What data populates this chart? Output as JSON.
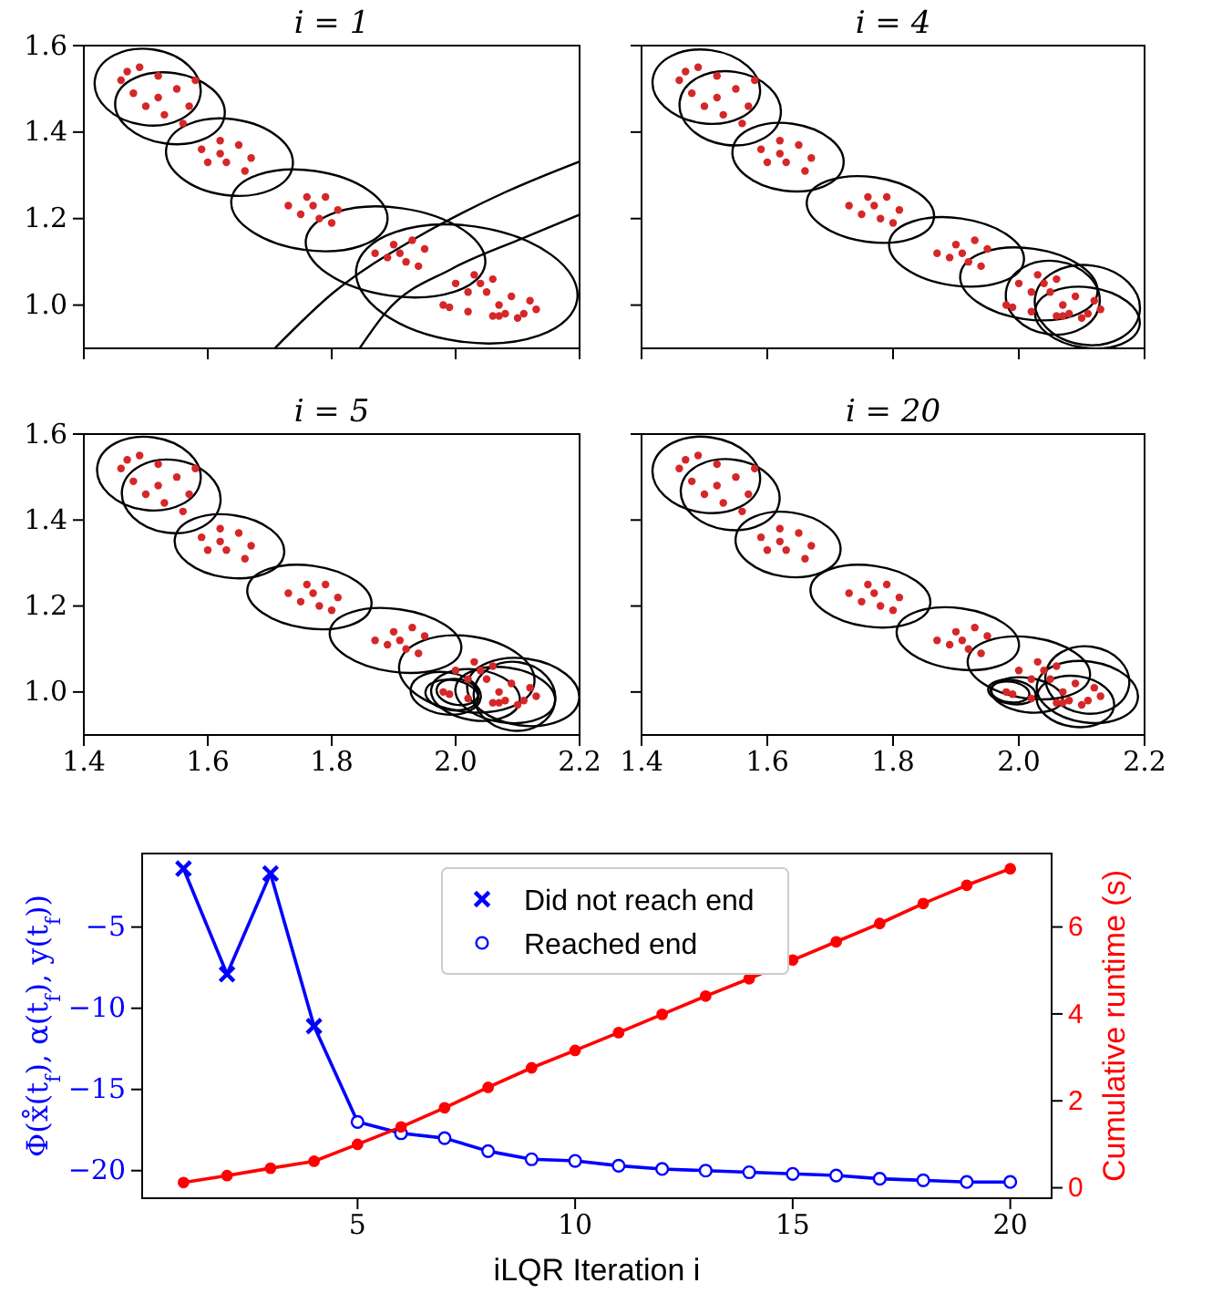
{
  "chart_data": [
    {
      "type": "scatter",
      "title": "i = 1",
      "xlim": [
        1.4,
        2.2
      ],
      "ylim": [
        0.9,
        1.6
      ],
      "xticks": [
        1.4,
        1.6,
        1.8,
        2,
        2.2
      ],
      "yticks": [
        {
          "value": 1,
          "label": "1.0"
        },
        1.2,
        1.4,
        1.6
      ],
      "tick_labels": "y",
      "grid": false,
      "legend": false,
      "series": [
        {
          "type": "scatter",
          "marker": "circle",
          "color": "#d62728",
          "x": [
            1.46,
            1.49,
            1.52,
            1.48,
            1.52,
            1.55,
            1.57,
            1.53,
            1.56,
            1.5,
            1.58,
            1.47,
            1.59,
            1.62,
            1.65,
            1.67,
            1.63,
            1.6,
            1.66,
            1.62,
            1.73,
            1.76,
            1.79,
            1.81,
            1.78,
            1.75,
            1.77,
            1.8,
            1.87,
            1.9,
            1.93,
            1.95,
            1.92,
            1.89,
            1.94,
            1.91,
            2.0,
            2.03,
            2.06,
            2.05,
            2.02,
            2.04,
            2.07,
            2.09,
            2.12,
            2.11,
            2.08,
            2.13,
            2.1,
            1.98,
            1.99,
            2.02,
            2.06,
            2.07
          ],
          "values": [
            1.52,
            1.55,
            1.53,
            1.49,
            1.48,
            1.5,
            1.46,
            1.44,
            1.42,
            1.46,
            1.52,
            1.54,
            1.36,
            1.38,
            1.37,
            1.34,
            1.33,
            1.33,
            1.31,
            1.35,
            1.23,
            1.25,
            1.25,
            1.22,
            1.2,
            1.21,
            1.23,
            1.19,
            1.12,
            1.14,
            1.15,
            1.13,
            1.1,
            1.11,
            1.09,
            1.12,
            1.05,
            1.07,
            1.06,
            1.03,
            1.03,
            1.05,
            1.0,
            1.02,
            1.01,
            0.98,
            0.98,
            0.99,
            0.97,
            1.0,
            0.995,
            0.985,
            0.975,
            0.975
          ]
        },
        {
          "type": "line",
          "color": "#000000",
          "x": [
            1.708,
            1.802,
            1.936,
            2.08,
            2.2
          ],
          "values": [
            0.9,
            1.028,
            1.155,
            1.261,
            1.332
          ]
        },
        {
          "type": "line",
          "color": "#000000",
          "x": [
            1.845,
            1.889,
            1.994,
            2.109,
            2.2
          ],
          "values": [
            0.9,
            0.986,
            1.084,
            1.155,
            1.209
          ]
        }
      ]
    },
    {
      "type": "scatter",
      "title": "i = 4",
      "xlim": [
        1.4,
        2.2
      ],
      "ylim": [
        0.9,
        1.6
      ],
      "xticks": [
        1.4,
        1.6,
        1.8,
        2,
        2.2
      ],
      "yticks": [
        1,
        1.2,
        1.4,
        1.6
      ],
      "tick_labels": false,
      "grid": false,
      "legend": false,
      "series": [
        {
          "type": "scatter",
          "marker": "circle",
          "color": "#d62728",
          "x": [
            1.46,
            1.49,
            1.52,
            1.48,
            1.52,
            1.55,
            1.57,
            1.53,
            1.56,
            1.5,
            1.58,
            1.47,
            1.59,
            1.62,
            1.65,
            1.67,
            1.63,
            1.6,
            1.66,
            1.62,
            1.73,
            1.76,
            1.79,
            1.81,
            1.78,
            1.75,
            1.77,
            1.8,
            1.87,
            1.9,
            1.93,
            1.95,
            1.92,
            1.89,
            1.94,
            1.91,
            2.0,
            2.03,
            2.06,
            2.05,
            2.02,
            2.04,
            2.07,
            2.09,
            2.12,
            2.11,
            2.08,
            2.13,
            2.1,
            1.98,
            1.99,
            2.02,
            2.06,
            2.07
          ],
          "values": [
            1.52,
            1.55,
            1.53,
            1.49,
            1.48,
            1.5,
            1.46,
            1.44,
            1.42,
            1.46,
            1.52,
            1.54,
            1.36,
            1.38,
            1.37,
            1.34,
            1.33,
            1.33,
            1.31,
            1.35,
            1.23,
            1.25,
            1.25,
            1.22,
            1.2,
            1.21,
            1.23,
            1.19,
            1.12,
            1.14,
            1.15,
            1.13,
            1.1,
            1.11,
            1.09,
            1.12,
            1.05,
            1.07,
            1.06,
            1.03,
            1.03,
            1.05,
            1.0,
            1.02,
            1.01,
            0.98,
            0.98,
            0.99,
            0.97,
            1.0,
            0.995,
            0.985,
            0.975,
            0.975
          ]
        }
      ]
    },
    {
      "type": "scatter",
      "title": "i = 5",
      "xlim": [
        1.4,
        2.2
      ],
      "ylim": [
        0.9,
        1.6
      ],
      "xticks": [
        1.4,
        1.6,
        1.8,
        {
          "value": 2,
          "label": "2.0"
        },
        2.2
      ],
      "yticks": [
        {
          "value": 1,
          "label": "1.0"
        },
        1.2,
        1.4,
        1.6
      ],
      "grid": false,
      "legend": false,
      "series": [
        {
          "type": "scatter",
          "marker": "circle",
          "color": "#d62728",
          "x": [
            1.46,
            1.49,
            1.52,
            1.48,
            1.52,
            1.55,
            1.57,
            1.53,
            1.56,
            1.5,
            1.58,
            1.47,
            1.59,
            1.62,
            1.65,
            1.67,
            1.63,
            1.6,
            1.66,
            1.62,
            1.73,
            1.76,
            1.79,
            1.81,
            1.78,
            1.75,
            1.77,
            1.8,
            1.87,
            1.9,
            1.93,
            1.95,
            1.92,
            1.89,
            1.94,
            1.91,
            2.0,
            2.03,
            2.06,
            2.05,
            2.02,
            2.04,
            2.07,
            2.09,
            2.12,
            2.11,
            2.08,
            2.13,
            2.1,
            1.98,
            1.99,
            2.02,
            2.06,
            2.07
          ],
          "values": [
            1.52,
            1.55,
            1.53,
            1.49,
            1.48,
            1.5,
            1.46,
            1.44,
            1.42,
            1.46,
            1.52,
            1.54,
            1.36,
            1.38,
            1.37,
            1.34,
            1.33,
            1.33,
            1.31,
            1.35,
            1.23,
            1.25,
            1.25,
            1.22,
            1.2,
            1.21,
            1.23,
            1.19,
            1.12,
            1.14,
            1.15,
            1.13,
            1.1,
            1.11,
            1.09,
            1.12,
            1.05,
            1.07,
            1.06,
            1.03,
            1.03,
            1.05,
            1.0,
            1.02,
            1.01,
            0.98,
            0.98,
            0.99,
            0.97,
            1.0,
            0.995,
            0.985,
            0.975,
            0.975
          ]
        }
      ]
    },
    {
      "type": "scatter",
      "title": "i = 20",
      "xlim": [
        1.4,
        2.2
      ],
      "ylim": [
        0.9,
        1.6
      ],
      "xticks": [
        1.4,
        1.6,
        1.8,
        {
          "value": 2,
          "label": "2.0"
        },
        2.2
      ],
      "yticks": [
        1,
        1.2,
        1.4,
        1.6
      ],
      "tick_labels": "x",
      "grid": false,
      "legend": false,
      "series": [
        {
          "type": "scatter",
          "marker": "circle",
          "color": "#d62728",
          "x": [
            1.46,
            1.49,
            1.52,
            1.48,
            1.52,
            1.55,
            1.57,
            1.53,
            1.56,
            1.5,
            1.58,
            1.47,
            1.59,
            1.62,
            1.65,
            1.67,
            1.63,
            1.6,
            1.66,
            1.62,
            1.73,
            1.76,
            1.79,
            1.81,
            1.78,
            1.75,
            1.77,
            1.8,
            1.87,
            1.9,
            1.93,
            1.95,
            1.92,
            1.89,
            1.94,
            1.91,
            2.0,
            2.03,
            2.06,
            2.05,
            2.02,
            2.04,
            2.07,
            2.09,
            2.12,
            2.11,
            2.08,
            2.13,
            2.1,
            1.98,
            1.99,
            2.02,
            2.06,
            2.07
          ],
          "values": [
            1.52,
            1.55,
            1.53,
            1.49,
            1.48,
            1.5,
            1.46,
            1.44,
            1.42,
            1.46,
            1.52,
            1.54,
            1.36,
            1.38,
            1.37,
            1.34,
            1.33,
            1.33,
            1.31,
            1.35,
            1.23,
            1.25,
            1.25,
            1.22,
            1.2,
            1.21,
            1.23,
            1.19,
            1.12,
            1.14,
            1.15,
            1.13,
            1.1,
            1.11,
            1.09,
            1.12,
            1.05,
            1.07,
            1.06,
            1.03,
            1.03,
            1.05,
            1.0,
            1.02,
            1.01,
            0.98,
            0.98,
            0.99,
            0.97,
            1.0,
            0.995,
            0.985,
            0.975,
            0.975
          ]
        }
      ]
    },
    {
      "type": "line",
      "xlabel": "iLQR Iteration i",
      "ylabel": "Φ(x̊(t$_{f}$), α(t$_{f}$), y(t$_{f}$))",
      "y2label": "Cumulative runtime (s)",
      "xlim": [
        0.05,
        20.95
      ],
      "xticks": [
        5,
        10,
        15,
        20
      ],
      "ylim": [
        -21.7,
        -0.47
      ],
      "yticks": [
        {
          "value": -5,
          "label": "−5"
        },
        {
          "value": -10,
          "label": "−10"
        },
        {
          "value": -15,
          "label": "−15"
        },
        {
          "value": -20,
          "label": "−20"
        }
      ],
      "y2lim": [
        -0.24,
        7.69
      ],
      "y2ticks": [
        0,
        2,
        4,
        6
      ],
      "grid": false,
      "legend": "top",
      "series": [
        {
          "marker": "none",
          "color": "#0000ff",
          "x": [
            1,
            2,
            3,
            4,
            5,
            6,
            7,
            8,
            9,
            10,
            11,
            12,
            13,
            14,
            15,
            16,
            17,
            18,
            19,
            20
          ],
          "values": [
            -1.4,
            -7.9,
            -1.7,
            -11.1,
            -17.0,
            -17.7,
            -18.0,
            -18.8,
            -19.3,
            -19.4,
            -19.7,
            -19.9,
            -20.0,
            -20.1,
            -20.2,
            -20.3,
            -20.5,
            -20.6,
            -20.7,
            -20.7
          ]
        },
        {
          "type": "scatter",
          "name": "Did not reach end",
          "marker": "cross",
          "color": "#0000ff",
          "x": [
            1,
            2,
            3,
            4
          ],
          "values": [
            -1.4,
            -7.9,
            -1.7,
            -11.1
          ]
        },
        {
          "type": "scatter",
          "name": "Reached end",
          "marker": "circle",
          "color": "#0000ff",
          "x": [
            5,
            6,
            7,
            8,
            9,
            10,
            11,
            12,
            13,
            14,
            15,
            16,
            17,
            18,
            19,
            20
          ],
          "values": [
            -17.0,
            -17.7,
            -18.0,
            -18.8,
            -19.3,
            -19.4,
            -19.7,
            -19.9,
            -20.0,
            -20.1,
            -20.2,
            -20.3,
            -20.5,
            -20.6,
            -20.7,
            -20.7
          ]
        },
        {
          "axis": "y2",
          "marker": "circle",
          "color": "#ff0000",
          "x": [
            1,
            2,
            3,
            4,
            5,
            6,
            7,
            8,
            9,
            10,
            11,
            12,
            13,
            14,
            15,
            16,
            17,
            18,
            19,
            20
          ],
          "values": [
            0.12,
            0.28,
            0.45,
            0.61,
            1.0,
            1.4,
            1.84,
            2.31,
            2.76,
            3.16,
            3.57,
            3.99,
            4.41,
            4.81,
            5.24,
            5.66,
            6.08,
            6.54,
            6.96,
            7.34
          ]
        }
      ]
    }
  ]
}
